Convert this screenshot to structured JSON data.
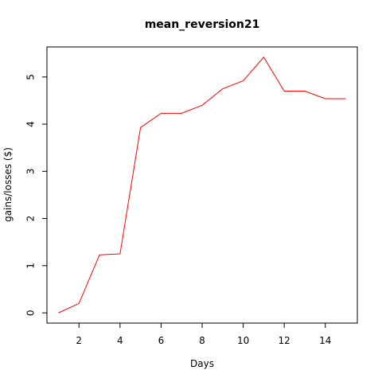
{
  "chart_data": {
    "type": "line",
    "title": "mean_reversion21",
    "xlabel": "Days",
    "ylabel": "gains/losses ($)",
    "x": [
      1,
      2,
      3,
      4,
      5,
      6,
      7,
      8,
      9,
      10,
      11,
      12,
      13,
      14,
      15
    ],
    "series": [
      {
        "values": [
          0.0,
          0.2,
          1.23,
          1.25,
          3.93,
          4.23,
          4.23,
          4.4,
          4.75,
          4.92,
          5.42,
          4.7,
          4.7,
          4.54,
          4.54
        ],
        "color": "#ff0000"
      }
    ],
    "xticks": [
      2,
      4,
      6,
      8,
      10,
      12,
      14
    ],
    "yticks": [
      0,
      1,
      2,
      3,
      4,
      5
    ],
    "xlim": [
      0.44,
      15.56
    ],
    "ylim": [
      -0.217,
      5.637
    ],
    "grid": false
  }
}
